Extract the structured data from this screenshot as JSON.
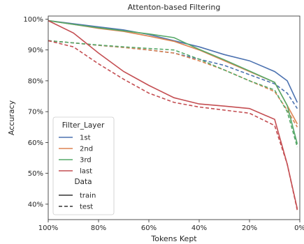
{
  "chart_data": {
    "type": "line",
    "title": "Attenton-based Filtering",
    "xlabel": "Tokens Kept",
    "ylabel": "Accuracy",
    "x_reversed": true,
    "xlim": [
      100,
      0
    ],
    "ylim": [
      35,
      101
    ],
    "grid": false,
    "x_ticks": [
      100,
      80,
      60,
      40,
      20,
      0
    ],
    "x_tick_labels": [
      "100%",
      "80%",
      "60%",
      "40%",
      "20%",
      "0%"
    ],
    "y_ticks": [
      40,
      50,
      60,
      70,
      80,
      90,
      100
    ],
    "y_tick_labels": [
      "40%",
      "50%",
      "60%",
      "70%",
      "80%",
      "90%",
      "100%"
    ],
    "x": [
      100,
      90,
      80,
      70,
      60,
      50,
      40,
      30,
      20,
      10,
      5,
      1
    ],
    "legend": {
      "placement": "lower-left",
      "hue_title": "Filter_Layer",
      "style_title": "Data",
      "styles": [
        {
          "name": "train",
          "dash": "solid"
        },
        {
          "name": "test",
          "dash": "dashed"
        }
      ]
    },
    "series": [
      {
        "name": "1st",
        "color": "#4c72b0",
        "train": [
          99.5,
          98.5,
          97.5,
          96.5,
          95.0,
          93.0,
          91.0,
          88.5,
          86.5,
          83.0,
          80.0,
          73.0
        ],
        "test": [
          93.0,
          92.3,
          91.5,
          90.8,
          90.0,
          89.0,
          87.0,
          85.0,
          82.0,
          79.0,
          76.0,
          71.0
        ]
      },
      {
        "name": "2nd",
        "color": "#dd8452",
        "train": [
          99.5,
          98.3,
          97.0,
          96.0,
          94.5,
          92.8,
          90.0,
          86.5,
          83.0,
          79.5,
          72.0,
          66.0
        ],
        "test": [
          93.0,
          92.3,
          91.5,
          90.8,
          90.0,
          89.0,
          86.5,
          83.5,
          80.0,
          76.5,
          70.5,
          65.0
        ]
      },
      {
        "name": "3rd",
        "color": "#55a868",
        "train": [
          99.5,
          98.3,
          97.2,
          96.2,
          95.2,
          94.0,
          90.2,
          86.8,
          83.2,
          79.5,
          72.0,
          59.5
        ],
        "test": [
          93.0,
          92.3,
          91.6,
          91.0,
          90.5,
          90.0,
          87.0,
          83.5,
          80.0,
          77.0,
          70.0,
          58.5
        ]
      },
      {
        "name": "last",
        "color": "#c44e52",
        "train": [
          99.5,
          95.5,
          89.0,
          83.0,
          78.5,
          74.5,
          72.5,
          71.8,
          71.0,
          67.5,
          53.0,
          38.5
        ],
        "test": [
          93.0,
          91.0,
          85.5,
          80.5,
          76.0,
          73.0,
          71.5,
          70.5,
          69.5,
          65.5,
          53.0,
          38.0
        ]
      }
    ]
  }
}
